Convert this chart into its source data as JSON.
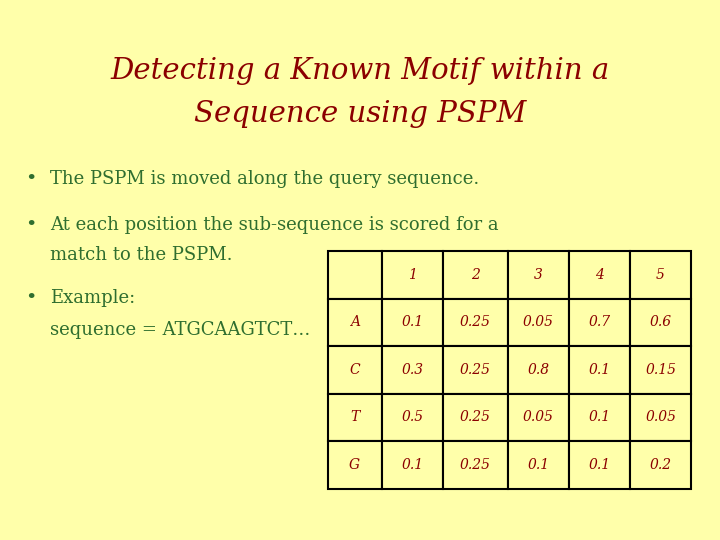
{
  "title_line1": "Detecting a Known Motif within a",
  "title_line2": "Sequence using PSPM",
  "title_color": "#8B0000",
  "background_color": "#FFFFAA",
  "bullet_color": "#2F6E2F",
  "text_color": "#2F6E2F",
  "table_header": [
    "",
    "1",
    "2",
    "3",
    "4",
    "5"
  ],
  "table_rows": [
    [
      "A",
      "0.1",
      "0.25",
      "0.05",
      "0.7",
      "0.6"
    ],
    [
      "C",
      "0.3",
      "0.25",
      "0.8",
      "0.1",
      "0.15"
    ],
    [
      "T",
      "0.5",
      "0.25",
      "0.05",
      "0.1",
      "0.05"
    ],
    [
      "G",
      "0.1",
      "0.25",
      "0.1",
      "0.1",
      "0.2"
    ]
  ],
  "table_text_color": "#8B0000",
  "table_bg_color": "#FFFFAA",
  "table_border_color": "#000000"
}
